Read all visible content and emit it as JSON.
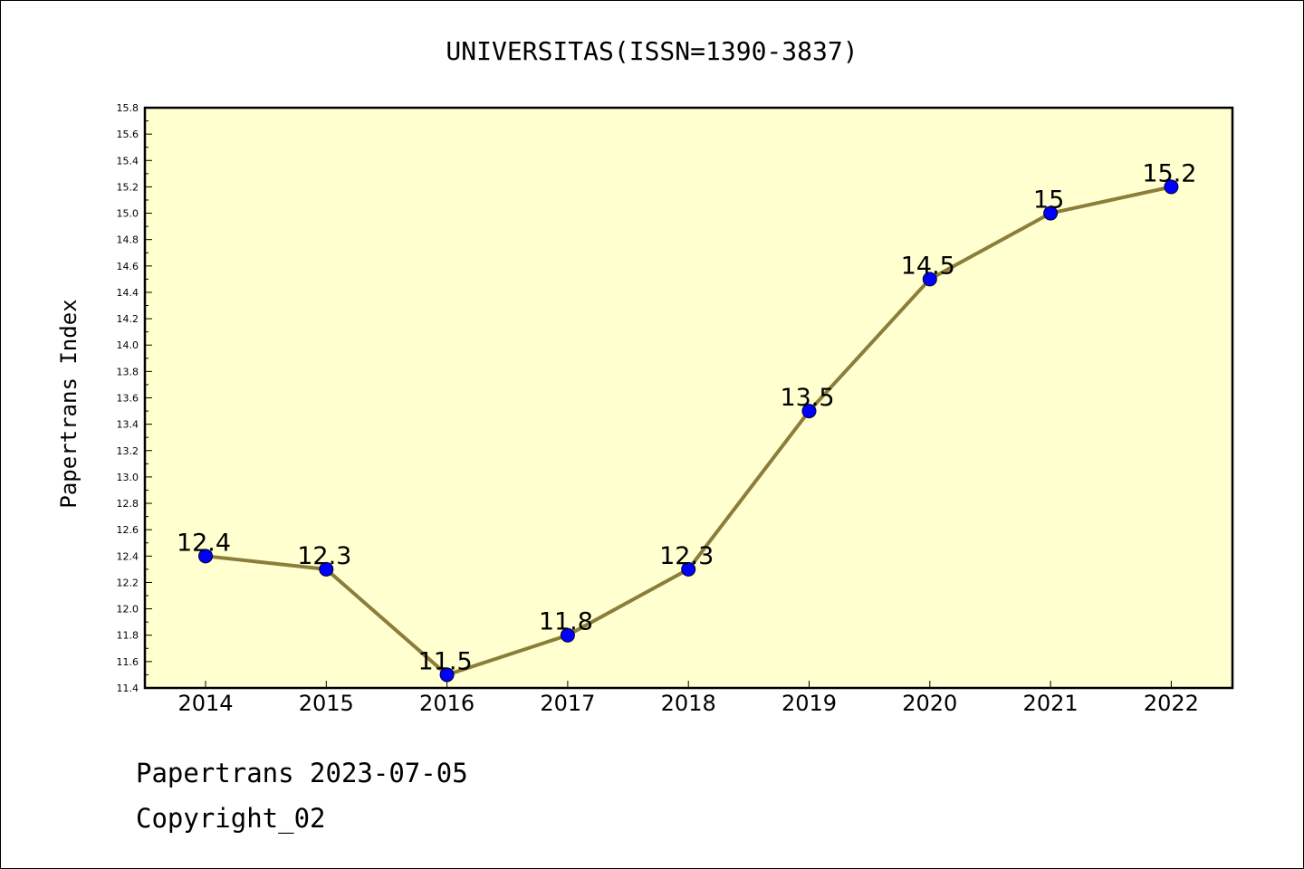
{
  "chart_data": {
    "type": "line",
    "title": "UNIVERSITAS(ISSN=1390-3837)",
    "ylabel": "Papertrans Index",
    "xlabel": "",
    "categories": [
      "2014",
      "2015",
      "2016",
      "2017",
      "2018",
      "2019",
      "2020",
      "2021",
      "2022"
    ],
    "values": [
      12.4,
      12.3,
      11.5,
      11.8,
      12.3,
      13.5,
      14.5,
      15.0,
      15.2
    ],
    "data_labels": [
      "12.4",
      "12.3",
      "11.5",
      "11.8",
      "12.3",
      "13.5",
      "14.5",
      "15",
      "15.2"
    ],
    "ylim": [
      11.4,
      15.8
    ],
    "yticks": [
      "11.4",
      "11.6",
      "11.8",
      "12.0",
      "12.2",
      "12.4",
      "12.6",
      "12.8",
      "13.0",
      "13.2",
      "13.4",
      "13.6",
      "13.8",
      "14.0",
      "14.2",
      "14.4",
      "14.6",
      "14.8",
      "15.0",
      "15.2",
      "15.4",
      "15.6",
      "15.8"
    ],
    "grid": false,
    "colors": {
      "plot_background": "#ffffd0",
      "line": "#8b7d3a",
      "marker": "#0000ff"
    }
  },
  "footer": {
    "line1": "Papertrans 2023-07-05",
    "line2": "Copyright_02"
  }
}
